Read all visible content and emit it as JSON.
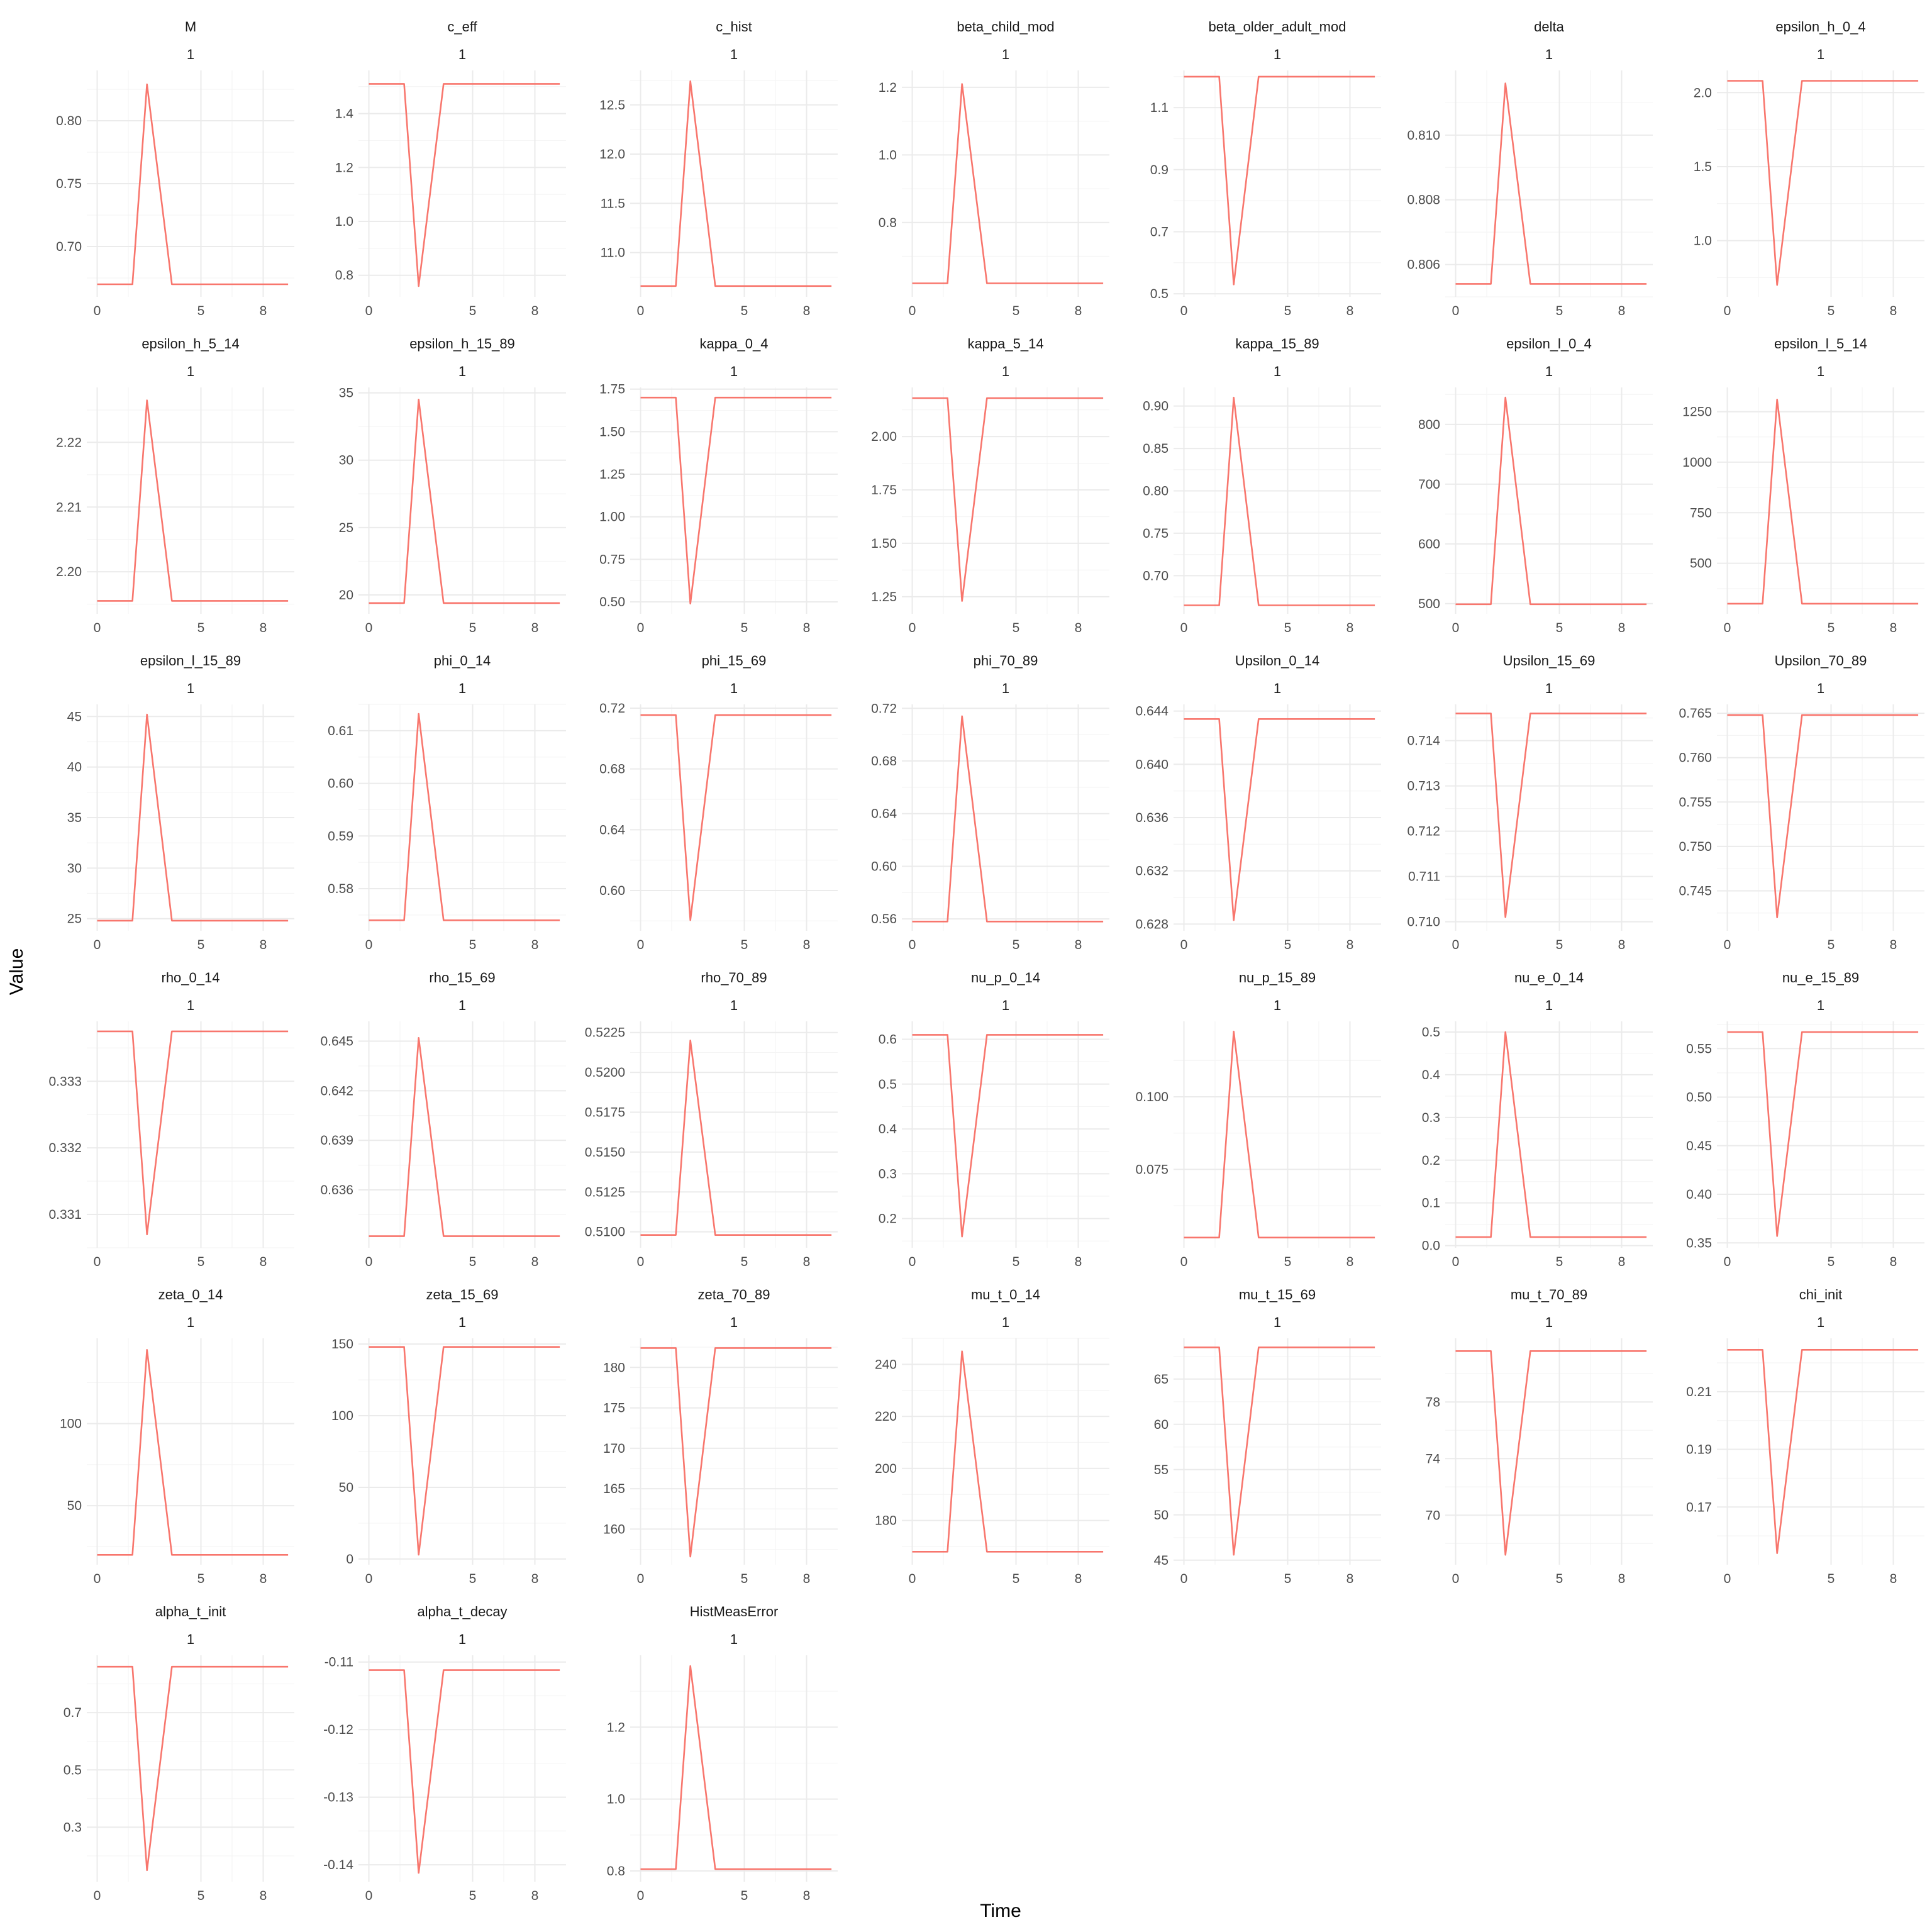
{
  "chart_data": {
    "type": "line",
    "xlabel": "Time",
    "ylabel": "Value",
    "x": [
      0,
      1,
      2,
      3,
      4,
      5,
      6,
      7,
      8,
      9
    ],
    "series_color": "#f8766d",
    "grid": true,
    "panel_label": "1",
    "panels": [
      {
        "title": "M",
        "xticks": [
          0,
          5,
          8
        ],
        "yticks": [
          "0.70",
          "0.75",
          "0.80"
        ],
        "ytick_values": [
          0.7,
          0.75,
          0.8
        ],
        "ylim": [
          0.66,
          0.84
        ],
        "baseline": 0.67,
        "extreme": 0.829
      },
      {
        "title": "c_eff",
        "xticks": [
          0,
          5,
          8
        ],
        "yticks": [
          "0.8",
          "1.0",
          "1.2",
          "1.4"
        ],
        "ytick_values": [
          0.8,
          1.0,
          1.2,
          1.4
        ],
        "ylim": [
          0.72,
          1.56
        ],
        "baseline": 1.51,
        "extreme": 0.76
      },
      {
        "title": "c_hist",
        "xticks": [
          0,
          5,
          8
        ],
        "yticks": [
          "11.0",
          "11.5",
          "12.0",
          "12.5"
        ],
        "ytick_values": [
          11.0,
          11.5,
          12.0,
          12.5
        ],
        "ylim": [
          10.55,
          12.85
        ],
        "baseline": 10.66,
        "extreme": 12.74
      },
      {
        "title": "beta_child_mod",
        "xticks": [
          0,
          5,
          8
        ],
        "yticks": [
          "0.8",
          "1.0",
          "1.2"
        ],
        "ytick_values": [
          0.8,
          1.0,
          1.2
        ],
        "ylim": [
          0.58,
          1.25
        ],
        "baseline": 0.62,
        "extreme": 1.21
      },
      {
        "title": "beta_older_adult_mod",
        "xticks": [
          0,
          5,
          8
        ],
        "yticks": [
          "0.5",
          "0.7",
          "0.9",
          "1.1"
        ],
        "ytick_values": [
          0.5,
          0.7,
          0.9,
          1.1
        ],
        "ylim": [
          0.49,
          1.22
        ],
        "baseline": 1.2,
        "extreme": 0.53
      },
      {
        "title": "delta",
        "xticks": [
          0,
          5,
          8
        ],
        "yticks": [
          "0.806",
          "0.808",
          "0.810"
        ],
        "ytick_values": [
          0.806,
          0.808,
          0.81
        ],
        "ylim": [
          0.805,
          0.812
        ],
        "baseline": 0.8054,
        "extreme": 0.8116
      },
      {
        "title": "epsilon_h_0_4",
        "xticks": [
          0,
          5,
          8
        ],
        "yticks": [
          "1.0",
          "1.5",
          "2.0"
        ],
        "ytick_values": [
          1.0,
          1.5,
          2.0
        ],
        "ylim": [
          0.62,
          2.15
        ],
        "baseline": 2.08,
        "extreme": 0.7
      },
      {
        "title": "epsilon_h_5_14",
        "xticks": [
          0,
          5,
          8
        ],
        "yticks": [
          "2.20",
          "2.21",
          "2.22"
        ],
        "ytick_values": [
          2.2,
          2.21,
          2.22
        ],
        "ylim": [
          2.1935,
          2.2285
        ],
        "baseline": 2.1955,
        "extreme": 2.2265
      },
      {
        "title": "epsilon_h_15_89",
        "xticks": [
          0,
          5,
          8
        ],
        "yticks": [
          "20",
          "25",
          "30",
          "35"
        ],
        "ytick_values": [
          20,
          25,
          30,
          35
        ],
        "ylim": [
          18.6,
          35.4
        ],
        "baseline": 19.4,
        "extreme": 34.5
      },
      {
        "title": "kappa_0_4",
        "xticks": [
          0,
          5,
          8
        ],
        "yticks": [
          "0.50",
          "0.75",
          "1.00",
          "1.25",
          "1.50",
          "1.75"
        ],
        "ytick_values": [
          0.5,
          0.75,
          1.0,
          1.25,
          1.5,
          1.75
        ],
        "ylim": [
          0.43,
          1.76
        ],
        "baseline": 1.7,
        "extreme": 0.49
      },
      {
        "title": "kappa_5_14",
        "xticks": [
          0,
          5,
          8
        ],
        "yticks": [
          "1.25",
          "1.50",
          "1.75",
          "2.00"
        ],
        "ytick_values": [
          1.25,
          1.5,
          1.75,
          2.0
        ],
        "ylim": [
          1.17,
          2.23
        ],
        "baseline": 2.18,
        "extreme": 1.23
      },
      {
        "title": "kappa_15_89",
        "xticks": [
          0,
          5,
          8
        ],
        "yticks": [
          "0.70",
          "0.75",
          "0.80",
          "0.85",
          "0.90"
        ],
        "ytick_values": [
          0.7,
          0.75,
          0.8,
          0.85,
          0.9
        ],
        "ylim": [
          0.655,
          0.922
        ],
        "baseline": 0.665,
        "extreme": 0.91
      },
      {
        "title": "epsilon_l_0_4",
        "xticks": [
          0,
          5,
          8
        ],
        "yticks": [
          "500",
          "600",
          "700",
          "800"
        ],
        "ytick_values": [
          500,
          600,
          700,
          800
        ],
        "ylim": [
          483,
          862
        ],
        "baseline": 499,
        "extreme": 845
      },
      {
        "title": "epsilon_l_5_14",
        "xticks": [
          0,
          5,
          8
        ],
        "yticks": [
          "500",
          "750",
          "1000",
          "1250"
        ],
        "ytick_values": [
          500,
          750,
          1000,
          1250
        ],
        "ylim": [
          250,
          1370
        ],
        "baseline": 300,
        "extreme": 1310
      },
      {
        "title": "epsilon_l_15_89",
        "xticks": [
          0,
          5,
          8
        ],
        "yticks": [
          "25",
          "30",
          "35",
          "40",
          "45"
        ],
        "ytick_values": [
          25,
          30,
          35,
          40,
          45
        ],
        "ylim": [
          23.8,
          46.2
        ],
        "baseline": 24.8,
        "extreme": 45.2
      },
      {
        "title": "phi_0_14",
        "xticks": [
          0,
          5,
          8
        ],
        "yticks": [
          "0.58",
          "0.59",
          "0.60",
          "0.61"
        ],
        "ytick_values": [
          0.58,
          0.59,
          0.6,
          0.61
        ],
        "ylim": [
          0.572,
          0.615
        ],
        "baseline": 0.574,
        "extreme": 0.6132
      },
      {
        "title": "phi_15_69",
        "xticks": [
          0,
          5,
          8
        ],
        "yticks": [
          "0.60",
          "0.64",
          "0.68",
          "0.72"
        ],
        "ytick_values": [
          0.6,
          0.64,
          0.68,
          0.72
        ],
        "ylim": [
          0.5735,
          0.7225
        ],
        "baseline": 0.7155,
        "extreme": 0.5805
      },
      {
        "title": "phi_70_89",
        "xticks": [
          0,
          5,
          8
        ],
        "yticks": [
          "0.56",
          "0.60",
          "0.64",
          "0.68",
          "0.72"
        ],
        "ytick_values": [
          0.56,
          0.6,
          0.64,
          0.68,
          0.72
        ],
        "ylim": [
          0.551,
          0.723
        ],
        "baseline": 0.558,
        "extreme": 0.714
      },
      {
        "title": "Upsilon_0_14",
        "xticks": [
          0,
          5,
          8
        ],
        "yticks": [
          "0.628",
          "0.632",
          "0.636",
          "0.640",
          "0.644"
        ],
        "ytick_values": [
          0.628,
          0.632,
          0.636,
          0.64,
          0.644
        ],
        "ylim": [
          0.6275,
          0.6445
        ],
        "baseline": 0.6434,
        "extreme": 0.6283
      },
      {
        "title": "Upsilon_15_69",
        "xticks": [
          0,
          5,
          8
        ],
        "yticks": [
          "0.710",
          "0.711",
          "0.712",
          "0.713",
          "0.714"
        ],
        "ytick_values": [
          0.71,
          0.711,
          0.712,
          0.713,
          0.714
        ],
        "ylim": [
          0.7098,
          0.7148
        ],
        "baseline": 0.7146,
        "extreme": 0.7101
      },
      {
        "title": "Upsilon_70_89",
        "xticks": [
          0,
          5,
          8
        ],
        "yticks": [
          "0.745",
          "0.750",
          "0.755",
          "0.760",
          "0.765"
        ],
        "ytick_values": [
          0.745,
          0.75,
          0.755,
          0.76,
          0.765
        ],
        "ylim": [
          0.7405,
          0.766
        ],
        "baseline": 0.7648,
        "extreme": 0.742
      },
      {
        "title": "rho_0_14",
        "xticks": [
          0,
          5,
          8
        ],
        "yticks": [
          "0.331",
          "0.332",
          "0.333"
        ],
        "ytick_values": [
          0.331,
          0.332,
          0.333
        ],
        "ylim": [
          0.3305,
          0.3339
        ],
        "baseline": 0.33375,
        "extreme": 0.3307
      },
      {
        "title": "rho_15_69",
        "xticks": [
          0,
          5,
          8
        ],
        "yticks": [
          "0.636",
          "0.639",
          "0.642",
          "0.645"
        ],
        "ytick_values": [
          0.636,
          0.639,
          0.642,
          0.645
        ],
        "ylim": [
          0.6325,
          0.6462
        ],
        "baseline": 0.6332,
        "extreme": 0.6452
      },
      {
        "title": "rho_70_89",
        "xticks": [
          0,
          5,
          8
        ],
        "yticks": [
          "0.5100",
          "0.5125",
          "0.5150",
          "0.5175",
          "0.5200",
          "0.5225"
        ],
        "ytick_values": [
          0.51,
          0.5125,
          0.515,
          0.5175,
          0.52,
          0.5225
        ],
        "ylim": [
          0.509,
          0.5232
        ],
        "baseline": 0.5098,
        "extreme": 0.522
      },
      {
        "title": "nu_p_0_14",
        "xticks": [
          0,
          5,
          8
        ],
        "yticks": [
          "0.2",
          "0.3",
          "0.4",
          "0.5",
          "0.6"
        ],
        "ytick_values": [
          0.2,
          0.3,
          0.4,
          0.5,
          0.6
        ],
        "ylim": [
          0.135,
          0.64
        ],
        "baseline": 0.61,
        "extreme": 0.16
      },
      {
        "title": "nu_p_15_89",
        "xticks": [
          0,
          5,
          8
        ],
        "yticks": [
          "0.075",
          "0.100"
        ],
        "ytick_values": [
          0.075,
          0.1
        ],
        "ylim": [
          0.048,
          0.126
        ],
        "baseline": 0.0515,
        "extreme": 0.1225
      },
      {
        "title": "nu_e_0_14",
        "xticks": [
          0,
          5,
          8
        ],
        "yticks": [
          "0.0",
          "0.1",
          "0.2",
          "0.3",
          "0.4",
          "0.5"
        ],
        "ytick_values": [
          0.0,
          0.1,
          0.2,
          0.3,
          0.4,
          0.5
        ],
        "ylim": [
          -0.005,
          0.525
        ],
        "baseline": 0.02,
        "extreme": 0.5
      },
      {
        "title": "nu_e_15_89",
        "xticks": [
          0,
          5,
          8
        ],
        "yticks": [
          "0.35",
          "0.40",
          "0.45",
          "0.50",
          "0.55"
        ],
        "ytick_values": [
          0.35,
          0.4,
          0.45,
          0.5,
          0.55
        ],
        "ylim": [
          0.345,
          0.578
        ],
        "baseline": 0.567,
        "extreme": 0.357
      },
      {
        "title": "zeta_0_14",
        "xticks": [
          0,
          5,
          8
        ],
        "yticks": [
          "50",
          "100"
        ],
        "ytick_values": [
          50,
          100
        ],
        "ylim": [
          14,
          152
        ],
        "baseline": 20,
        "extreme": 145
      },
      {
        "title": "zeta_15_69",
        "xticks": [
          0,
          5,
          8
        ],
        "yticks": [
          "0",
          "50",
          "100",
          "150"
        ],
        "ytick_values": [
          0,
          50,
          100,
          150
        ],
        "ylim": [
          -4,
          154
        ],
        "baseline": 148,
        "extreme": 3
      },
      {
        "title": "zeta_70_89",
        "xticks": [
          0,
          5,
          8
        ],
        "yticks": [
          "160",
          "165",
          "170",
          "175",
          "180"
        ],
        "ytick_values": [
          160,
          165,
          170,
          175,
          180
        ],
        "ylim": [
          155.6,
          183.6
        ],
        "baseline": 182.4,
        "extreme": 156.6
      },
      {
        "title": "mu_t_0_14",
        "xticks": [
          0,
          5,
          8
        ],
        "yticks": [
          "180",
          "200",
          "220",
          "240"
        ],
        "ytick_values": [
          180,
          200,
          220,
          240
        ],
        "ylim": [
          163,
          250
        ],
        "baseline": 168,
        "extreme": 245
      },
      {
        "title": "mu_t_15_69",
        "xticks": [
          0,
          5,
          8
        ],
        "yticks": [
          "45",
          "50",
          "55",
          "60",
          "65"
        ],
        "ytick_values": [
          45,
          50,
          55,
          60,
          65
        ],
        "ylim": [
          44.5,
          69.5
        ],
        "baseline": 68.5,
        "extreme": 45.6
      },
      {
        "title": "mu_t_70_89",
        "xticks": [
          0,
          5,
          8
        ],
        "yticks": [
          "70",
          "74",
          "78"
        ],
        "ytick_values": [
          70,
          74,
          78
        ],
        "ylim": [
          66.5,
          82.5
        ],
        "baseline": 81.6,
        "extreme": 67.2
      },
      {
        "title": "chi_init",
        "xticks": [
          0,
          5,
          8
        ],
        "yticks": [
          "0.17",
          "0.19",
          "0.21"
        ],
        "ytick_values": [
          0.17,
          0.19,
          0.21
        ],
        "ylim": [
          0.15,
          0.2285
        ],
        "baseline": 0.2245,
        "extreme": 0.154
      },
      {
        "title": "alpha_t_init",
        "xticks": [
          0,
          5,
          8
        ],
        "yticks": [
          "0.3",
          "0.5",
          "0.7"
        ],
        "ytick_values": [
          0.3,
          0.5,
          0.7
        ],
        "ylim": [
          0.11,
          0.9
        ],
        "baseline": 0.86,
        "extreme": 0.15
      },
      {
        "title": "alpha_t_decay",
        "xticks": [
          0,
          5,
          8
        ],
        "yticks": [
          "-0.14",
          "-0.13",
          "-0.12",
          "-0.11"
        ],
        "ytick_values": [
          -0.14,
          -0.13,
          -0.12,
          -0.11
        ],
        "ylim": [
          -0.1425,
          -0.109
        ],
        "baseline": -0.1112,
        "extreme": -0.1412
      },
      {
        "title": "HistMeasError",
        "xticks": [
          0,
          5,
          8
        ],
        "yticks": [
          "0.8",
          "1.0",
          "1.2"
        ],
        "ytick_values": [
          0.8,
          1.0,
          1.2
        ],
        "ylim": [
          0.77,
          1.4
        ],
        "baseline": 0.805,
        "extreme": 1.37
      }
    ]
  }
}
